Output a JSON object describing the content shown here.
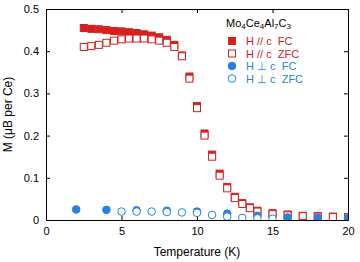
{
  "chart_data": {
    "type": "scatter",
    "title": "Mo4Ce4Al7C3",
    "x_label": "Temperature (K)",
    "y_label": "M (μB per Ce)",
    "xlim": [
      0,
      20
    ],
    "xticks": [
      0,
      5,
      10,
      15,
      20
    ],
    "ylim": [
      0,
      0.5
    ],
    "yticks": [
      0,
      0.1,
      0.2,
      0.3,
      0.4,
      0.5
    ],
    "legend": "upper right",
    "series": [
      {
        "name": "H // c  FC",
        "color": "#d42020",
        "marker": "square",
        "x": [
          2.5,
          3,
          3.5,
          4,
          4.5,
          5,
          5.5,
          6,
          6.5,
          7,
          7.5,
          8,
          8.5,
          9,
          9.5,
          10,
          10.5,
          11,
          11.5,
          12,
          12.5,
          13,
          13.5,
          14,
          15,
          16,
          17,
          18,
          19,
          20
        ],
        "values": [
          0.455,
          0.453,
          0.452,
          0.45,
          0.448,
          0.447,
          0.445,
          0.443,
          0.44,
          0.437,
          0.433,
          0.427,
          0.415,
          0.39,
          0.34,
          0.27,
          0.205,
          0.155,
          0.11,
          0.078,
          0.055,
          0.04,
          0.03,
          0.022,
          0.016,
          0.013,
          0.01,
          0.009,
          0.008,
          0.007
        ]
      },
      {
        "name": "H // c  ZFC",
        "color": "#d42020",
        "marker": "square-open",
        "x": [
          2.5,
          3,
          3.5,
          4,
          4.5,
          5,
          5.5,
          6,
          6.5,
          7,
          7.5,
          8,
          8.5,
          9,
          9.5,
          10,
          10.5,
          11,
          11.5,
          12,
          12.5,
          13,
          13.5,
          14,
          15,
          16,
          17,
          18,
          19,
          20
        ],
        "values": [
          0.41,
          0.412,
          0.415,
          0.42,
          0.425,
          0.428,
          0.43,
          0.43,
          0.43,
          0.428,
          0.425,
          0.42,
          0.41,
          0.388,
          0.335,
          0.265,
          0.2,
          0.15,
          0.105,
          0.075,
          0.052,
          0.038,
          0.028,
          0.02,
          0.014,
          0.011,
          0.009,
          0.008,
          0.007,
          0.006
        ]
      },
      {
        "name": "H ⊥ c  FC",
        "color": "#2b7fe0",
        "marker": "circle",
        "x": [
          2,
          4,
          6,
          8,
          10,
          12,
          14,
          16,
          18,
          20
        ],
        "values": [
          0.025,
          0.024,
          0.023,
          0.022,
          0.02,
          0.015,
          0.01,
          0.006,
          0.005,
          0.004
        ]
      },
      {
        "name": "H ⊥ c  ZFC",
        "color": "#2b7fe0",
        "marker": "circle-open",
        "x": [
          5,
          6,
          7,
          8,
          9,
          10,
          11,
          12,
          13,
          14,
          15
        ],
        "values": [
          0.02,
          0.02,
          0.02,
          0.019,
          0.018,
          0.017,
          0.012,
          0.008,
          0.005,
          0.004,
          0.003
        ]
      }
    ]
  }
}
